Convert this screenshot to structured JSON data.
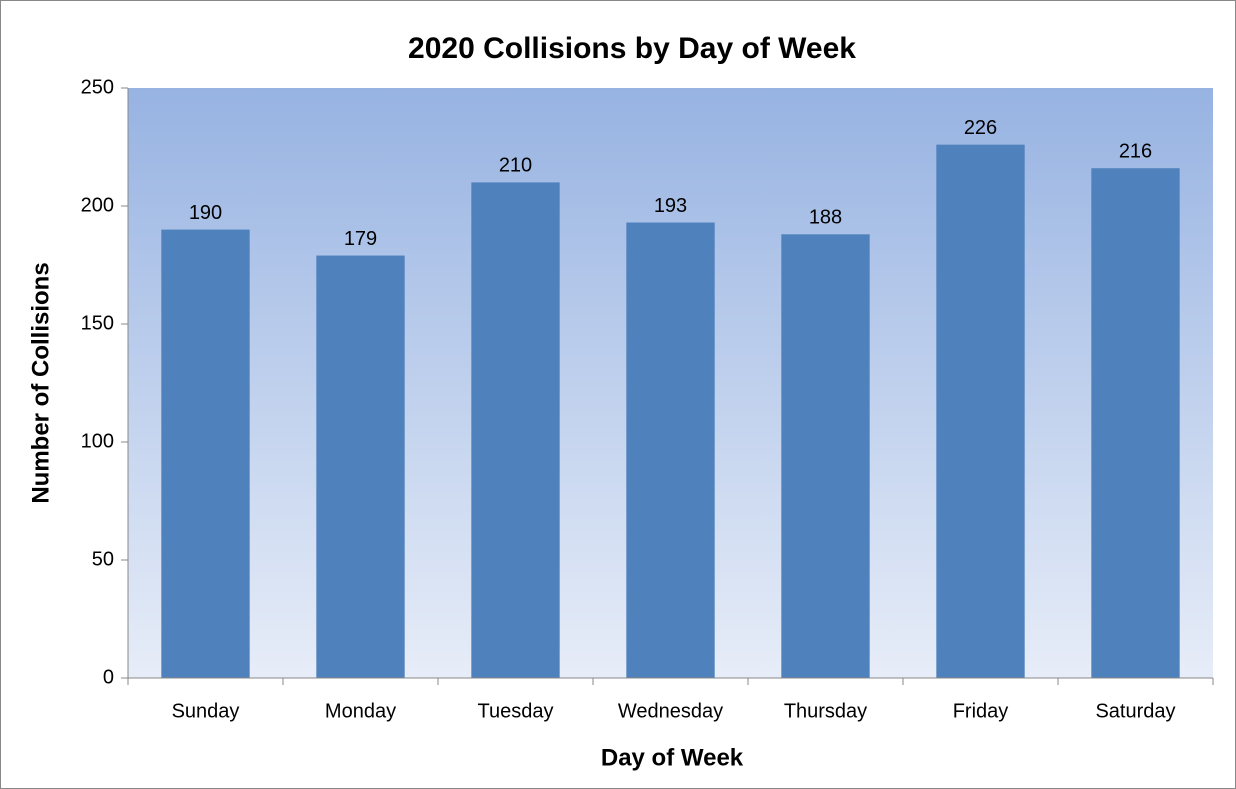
{
  "chart_data": {
    "type": "bar",
    "title": "2020 Collisions by Day of Week",
    "x_label": "Day of Week",
    "y_label": "Number of Collisions",
    "categories": [
      "Sunday",
      "Monday",
      "Tuesday",
      "Wednesday",
      "Thursday",
      "Friday",
      "Saturday"
    ],
    "values": [
      190,
      179,
      210,
      193,
      188,
      226,
      216
    ],
    "color": "#4f81bd",
    "ylim": [
      0,
      250
    ],
    "yticks": [
      0,
      50,
      100,
      150,
      200,
      250
    ]
  }
}
